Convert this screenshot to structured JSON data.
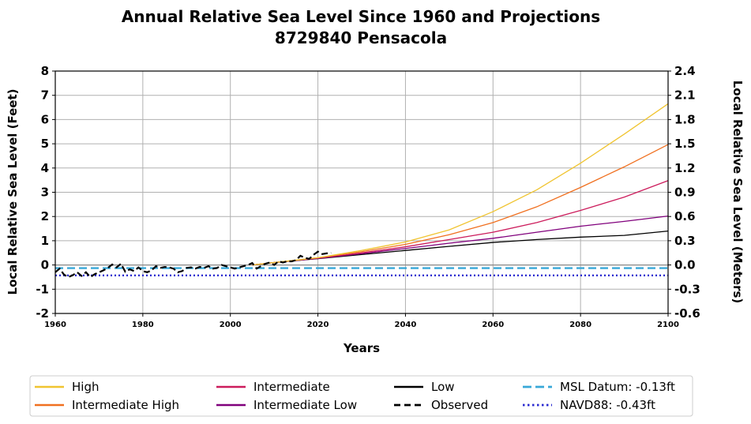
{
  "chart_data": {
    "type": "line",
    "title": "Annual Relative Sea Level Since 1960 and Projections",
    "subtitle": "8729840 Pensacola",
    "xlabel": "Years",
    "ylabel_left": "Local Relative Sea Level (Feet)",
    "ylabel_right": "Local Relative Sea Level (Meters)",
    "xlim": [
      1960,
      2100
    ],
    "ylim_left": [
      -2,
      8
    ],
    "ylim_right": [
      -0.6,
      2.4
    ],
    "x_ticks": [
      "1960",
      "1980",
      "2000",
      "2020",
      "2040",
      "2060",
      "2080",
      "2100"
    ],
    "y_ticks_left": [
      "-2",
      "-1",
      "0",
      "1",
      "2",
      "3",
      "4",
      "5",
      "6",
      "7",
      "8"
    ],
    "y_ticks_right": [
      "-0.6",
      "-0.3",
      "0.0",
      "0.3",
      "0.6",
      "0.9",
      "1.2",
      "1.5",
      "1.8",
      "2.1",
      "2.4"
    ],
    "grid": true,
    "legend_position": "bottom",
    "series": [
      {
        "name": "High",
        "color": "#f0c430",
        "style": "solid",
        "x": [
          2005,
          2010,
          2020,
          2030,
          2040,
          2050,
          2060,
          2070,
          2080,
          2090,
          2100
        ],
        "y": [
          0.0,
          0.1,
          0.3,
          0.6,
          0.95,
          1.45,
          2.2,
          3.1,
          4.2,
          5.4,
          6.65
        ]
      },
      {
        "name": "Intermediate High",
        "color": "#f07020",
        "style": "solid",
        "x": [
          2005,
          2010,
          2020,
          2030,
          2040,
          2050,
          2060,
          2070,
          2080,
          2090,
          2100
        ],
        "y": [
          0.0,
          0.1,
          0.3,
          0.55,
          0.85,
          1.25,
          1.75,
          2.4,
          3.2,
          4.05,
          4.97
        ]
      },
      {
        "name": "Intermediate",
        "color": "#cc1c5c",
        "style": "solid",
        "x": [
          2005,
          2010,
          2020,
          2030,
          2040,
          2050,
          2060,
          2070,
          2080,
          2090,
          2100
        ],
        "y": [
          0.0,
          0.1,
          0.28,
          0.5,
          0.75,
          1.05,
          1.35,
          1.75,
          2.25,
          2.8,
          3.48
        ]
      },
      {
        "name": "Intermediate Low",
        "color": "#80007c",
        "style": "solid",
        "x": [
          2005,
          2010,
          2020,
          2030,
          2040,
          2050,
          2060,
          2070,
          2080,
          2090,
          2100
        ],
        "y": [
          0.0,
          0.1,
          0.27,
          0.47,
          0.68,
          0.9,
          1.1,
          1.35,
          1.6,
          1.8,
          2.02
        ]
      },
      {
        "name": "Low",
        "color": "#000000",
        "style": "solid",
        "x": [
          2005,
          2010,
          2020,
          2030,
          2040,
          2050,
          2060,
          2070,
          2080,
          2090,
          2100
        ],
        "y": [
          0.0,
          0.1,
          0.26,
          0.43,
          0.6,
          0.77,
          0.93,
          1.05,
          1.15,
          1.22,
          1.4
        ]
      },
      {
        "name": "Observed",
        "color": "#000000",
        "style": "dashed",
        "x": [
          1960,
          1961,
          1962,
          1963,
          1964,
          1965,
          1966,
          1967,
          1968,
          1969,
          1970,
          1971,
          1972,
          1973,
          1974,
          1975,
          1976,
          1977,
          1978,
          1979,
          1980,
          1981,
          1982,
          1983,
          1984,
          1985,
          1986,
          1987,
          1988,
          1989,
          1990,
          1991,
          1992,
          1993,
          1994,
          1995,
          1996,
          1997,
          1998,
          1999,
          2000,
          2001,
          2002,
          2003,
          2004,
          2005,
          2006,
          2007,
          2008,
          2009,
          2010,
          2011,
          2012,
          2013,
          2014,
          2015,
          2016,
          2017,
          2018,
          2019,
          2020,
          2021,
          2022,
          2023
        ],
        "y": [
          -0.3,
          -0.15,
          -0.4,
          -0.5,
          -0.42,
          -0.3,
          -0.45,
          -0.3,
          -0.5,
          -0.38,
          -0.3,
          -0.22,
          -0.12,
          0.02,
          -0.1,
          0.05,
          -0.28,
          -0.18,
          -0.25,
          -0.1,
          -0.25,
          -0.3,
          -0.22,
          -0.05,
          -0.12,
          -0.08,
          -0.1,
          -0.15,
          -0.3,
          -0.25,
          -0.12,
          -0.1,
          -0.15,
          -0.08,
          -0.12,
          -0.05,
          -0.15,
          -0.12,
          0.0,
          -0.05,
          -0.1,
          -0.15,
          -0.1,
          -0.05,
          0.0,
          0.08,
          -0.15,
          -0.05,
          0.05,
          0.1,
          0.0,
          0.15,
          0.1,
          0.15,
          0.15,
          0.2,
          0.38,
          0.3,
          0.25,
          0.42,
          0.55,
          0.45,
          0.48,
          0.5
        ]
      },
      {
        "name": "MSL Datum: -0.13ft",
        "color": "#38a8d8",
        "style": "longdash",
        "x": [
          1960,
          2100
        ],
        "y": [
          -0.13,
          -0.13
        ]
      },
      {
        "name": "NAVD88: -0.43ft",
        "color": "#2a2ad0",
        "style": "dotted",
        "x": [
          1960,
          2100
        ],
        "y": [
          -0.43,
          -0.43
        ]
      }
    ]
  }
}
